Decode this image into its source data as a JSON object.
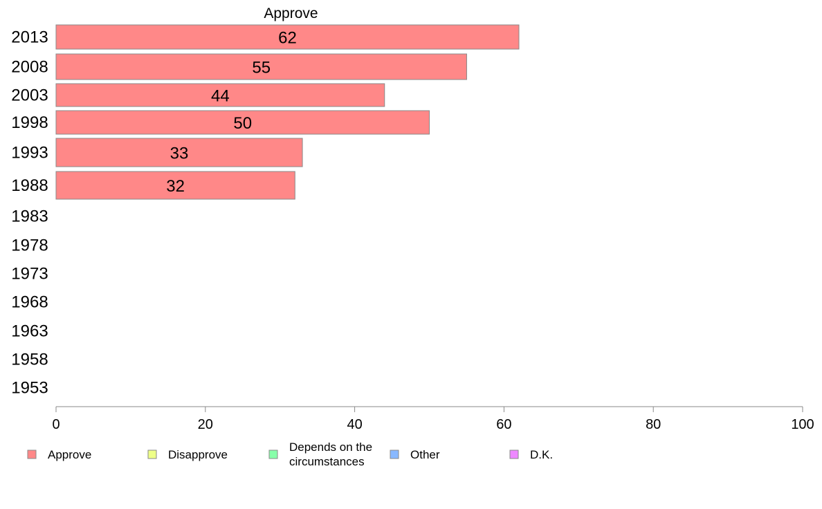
{
  "chart_data": {
    "type": "bar",
    "orientation": "horizontal",
    "categories": [
      "2013",
      "2008",
      "2003",
      "1998",
      "1993",
      "1988",
      "1983",
      "1978",
      "1973",
      "1968",
      "1963",
      "1958",
      "1953"
    ],
    "series": [
      {
        "name": "Approve",
        "color": "#ff8888",
        "values": [
          62,
          55,
          44,
          50,
          33,
          32,
          null,
          null,
          null,
          null,
          null,
          null,
          null
        ]
      }
    ],
    "xlim": [
      0,
      100
    ],
    "xticks": [
      0,
      20,
      40,
      60,
      80,
      100
    ],
    "grid": false,
    "legend": {
      "placement": "bottom",
      "items": [
        {
          "label": "Approve",
          "color": "#ff8888"
        },
        {
          "label": "Disapprove",
          "color": "#eeff88"
        },
        {
          "label": "Depends on the circumstances",
          "color": "#88ffaa"
        },
        {
          "label": "Other",
          "color": "#88b8ff"
        },
        {
          "label": "D.K.",
          "color": "#ee88ff"
        }
      ]
    }
  }
}
